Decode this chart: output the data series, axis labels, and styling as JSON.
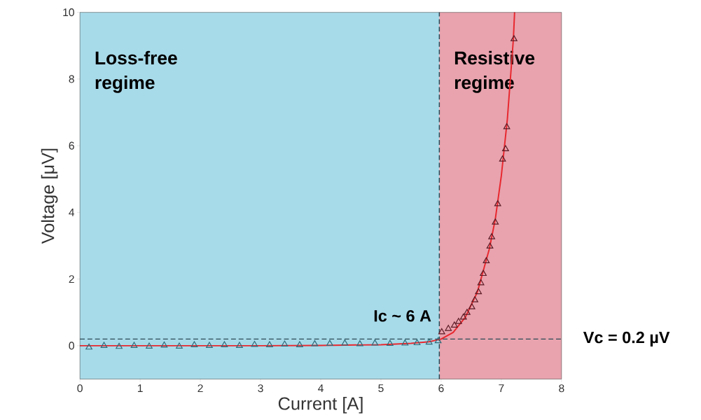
{
  "chart_data": {
    "type": "scatter",
    "xlabel": "Current [A]",
    "ylabel": "Voltage [μV]",
    "xlim": [
      0,
      8
    ],
    "ylim": [
      -1,
      10
    ],
    "xticks": [
      0,
      1,
      2,
      3,
      4,
      5,
      6,
      7,
      8
    ],
    "yticks": [
      0,
      2,
      4,
      6,
      8,
      10
    ],
    "grid": false,
    "bands": [
      {
        "axis": "x",
        "from": 0,
        "to": 5.97,
        "label": "Loss-free regime",
        "color": "#a8dbea"
      },
      {
        "axis": "x",
        "from": 5.97,
        "to": 8,
        "label": "Resistive regime",
        "color": "#e8a3ae"
      }
    ],
    "ref_lines": [
      {
        "axis": "x",
        "value": 5.97,
        "label": "Ic ~ 6 A",
        "color": "#2b4a55",
        "line_style": "dashed"
      },
      {
        "axis": "y",
        "value": 0.2,
        "label": "Vc = 0.2 µV",
        "color": "#2b4a55",
        "line_style": "dashed"
      }
    ],
    "series": [
      {
        "marker": "triangle",
        "color": "#2e6b7a",
        "x": [
          0.15,
          0.4,
          0.65,
          0.9,
          1.15,
          1.4,
          1.65,
          1.9,
          2.15,
          2.4,
          2.65,
          2.9,
          3.15,
          3.4,
          3.65,
          3.9,
          4.15,
          4.4,
          4.65,
          4.9,
          5.15,
          5.4,
          5.6,
          5.8,
          5.95
        ],
        "values": [
          -0.05,
          0.0,
          -0.03,
          0.0,
          -0.02,
          0.01,
          -0.02,
          0.02,
          0.0,
          0.02,
          0.0,
          0.03,
          0.02,
          0.04,
          0.02,
          0.05,
          0.06,
          0.07,
          0.05,
          0.07,
          0.06,
          0.07,
          0.08,
          0.1,
          0.14
        ]
      },
      {
        "marker": "triangle",
        "color": "#5a1a24",
        "x": [
          6.01,
          6.12,
          6.22,
          6.29,
          6.37,
          6.43,
          6.51,
          6.56,
          6.62,
          6.66,
          6.7,
          6.75,
          6.81,
          6.84,
          6.9,
          6.94,
          7.02,
          7.07,
          7.09,
          7.21
        ],
        "values": [
          0.41,
          0.51,
          0.61,
          0.72,
          0.85,
          0.99,
          1.16,
          1.37,
          1.61,
          1.88,
          2.16,
          2.54,
          2.98,
          3.26,
          3.7,
          4.25,
          5.59,
          5.9,
          6.56,
          9.2
        ]
      },
      {
        "type": "line",
        "marker": "none",
        "color": "#e8272e",
        "x": [
          0,
          1,
          2,
          3,
          4,
          5,
          5.5,
          5.8,
          6.0,
          6.2,
          6.4,
          6.6,
          6.8,
          6.9,
          7.0,
          7.1,
          7.2,
          7.22
        ],
        "values": [
          0,
          0,
          0,
          0,
          0.01,
          0.03,
          0.07,
          0.12,
          0.2,
          0.4,
          0.85,
          1.6,
          2.9,
          3.8,
          5.1,
          6.8,
          9.2,
          10
        ]
      }
    ]
  }
}
